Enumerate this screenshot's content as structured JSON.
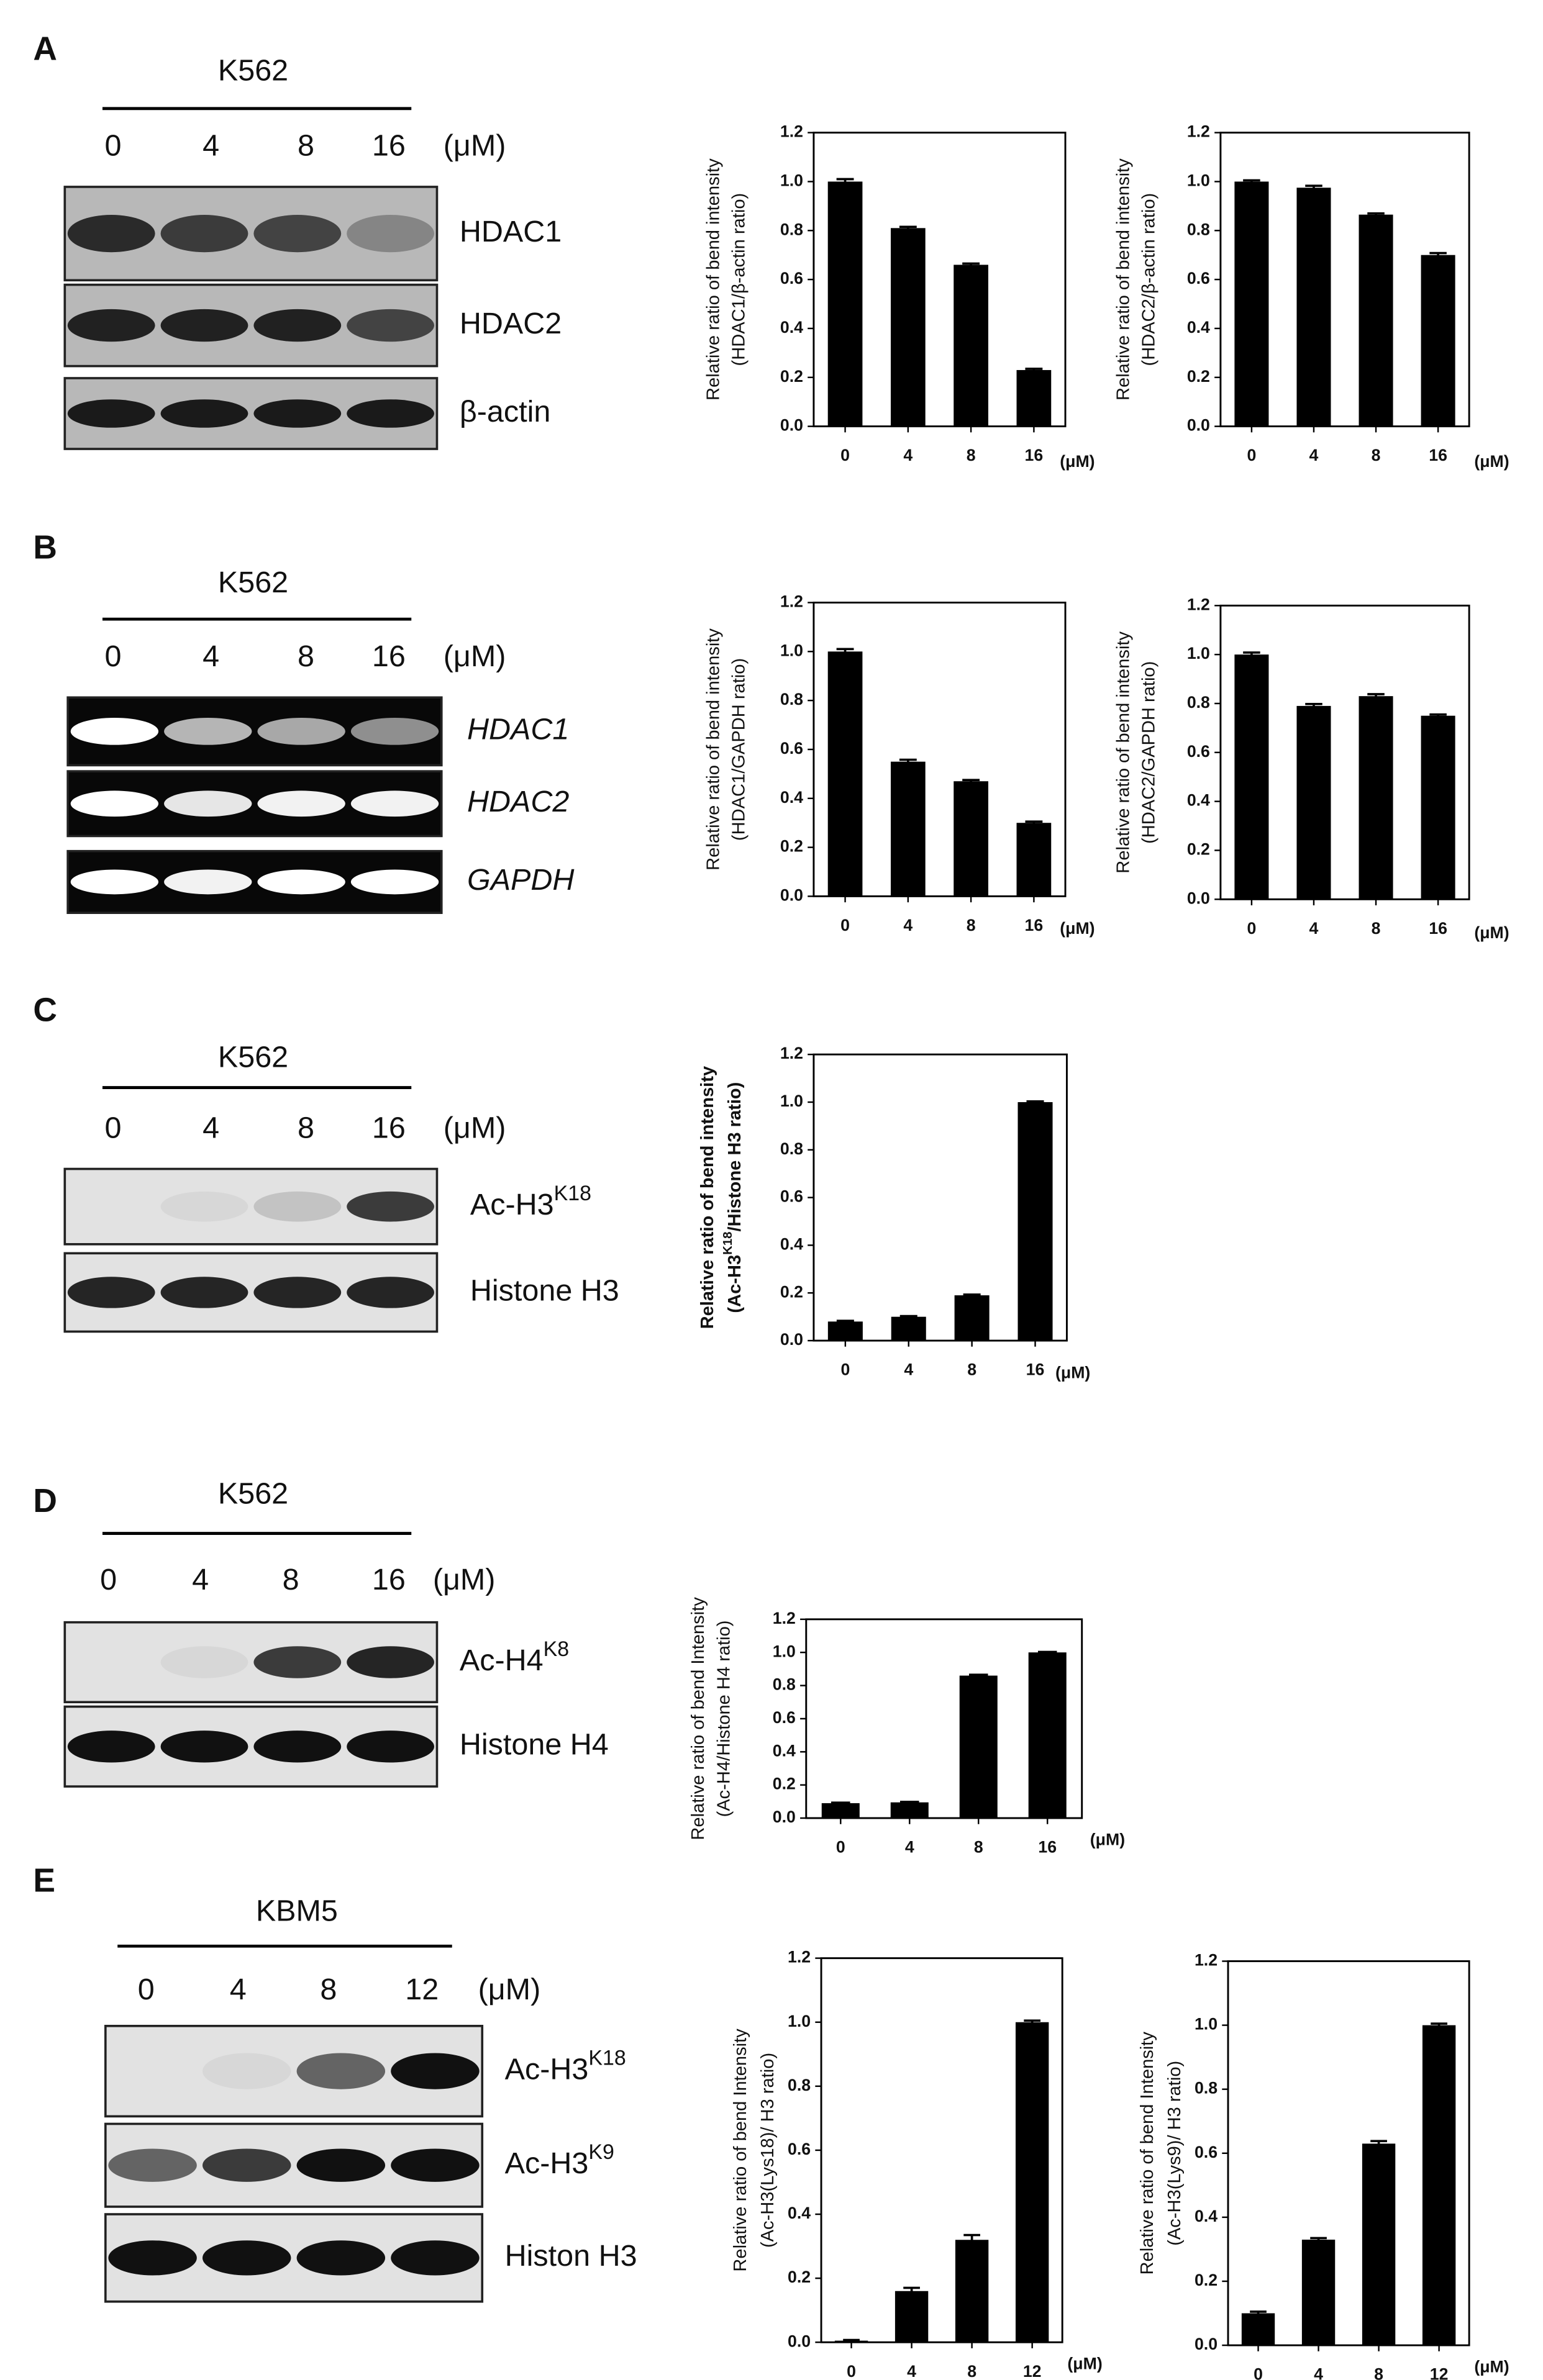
{
  "panels": [
    {
      "label": "A",
      "cell_line": "K562",
      "doses": [
        "0",
        "4",
        "8",
        "16"
      ],
      "unit": "(μM)",
      "bands": [
        "HDAC1",
        "HDAC2",
        "β-actin"
      ]
    },
    {
      "label": "B",
      "cell_line": "K562",
      "doses": [
        "0",
        "4",
        "8",
        "16"
      ],
      "unit": "(μM)",
      "bands": [
        "HDAC1",
        "HDAC2",
        "GAPDH"
      ]
    },
    {
      "label": "C",
      "cell_line": "K562",
      "doses": [
        "0",
        "4",
        "8",
        "16"
      ],
      "unit": "(μM)",
      "bands": [
        {
          "text": "Ac-H3",
          "sup": "K18"
        },
        "Histone H3"
      ]
    },
    {
      "label": "D",
      "cell_line": "K562",
      "doses": [
        "0",
        "4",
        "8",
        "16"
      ],
      "unit": "(μM)",
      "bands": [
        {
          "text": "Ac-H4",
          "sup": "K8"
        },
        "Histone H4"
      ]
    },
    {
      "label": "E",
      "cell_line": "KBM5",
      "doses": [
        "0",
        "4",
        "8",
        "12"
      ],
      "unit": "(μM)",
      "bands": [
        {
          "text": "Ac-H3",
          "sup": "K18"
        },
        {
          "text": "Ac-H3",
          "sup": "K9"
        },
        "Histon H3"
      ]
    }
  ],
  "chart_data": [
    {
      "type": "bar",
      "y_label": [
        "Relative ratio of bend intensity",
        "(HDAC1/β-actin ratio)"
      ],
      "categories": [
        "0",
        "4",
        "8",
        "16"
      ],
      "x_unit": "(μM)",
      "values": [
        1.0,
        0.81,
        0.66,
        0.23
      ],
      "errors": [
        0.01,
        0.005,
        0.005,
        0.005
      ],
      "color": "#000000",
      "ylim": [
        0,
        1.2
      ],
      "yticks": [
        {
          "value": 0,
          "label": "0.0"
        },
        0.2,
        0.4,
        0.6,
        0.8,
        {
          "value": 1,
          "label": "1.0"
        },
        1.2
      ]
    },
    {
      "type": "bar",
      "y_label": [
        "Relative ratio of bend intensity",
        "(HDAC2/β-actin ratio)"
      ],
      "categories": [
        "0",
        "4",
        "8",
        "16"
      ],
      "x_unit": "(μM)",
      "values": [
        1.0,
        0.975,
        0.865,
        0.7
      ],
      "errors": [
        0.005,
        0.008,
        0.005,
        0.008
      ],
      "color": "#000000",
      "ylim": [
        0,
        1.2
      ],
      "yticks": [
        {
          "value": 0,
          "label": "0.0"
        },
        0.2,
        0.4,
        0.6,
        0.8,
        {
          "value": 1,
          "label": "1.0"
        },
        1.2
      ]
    },
    {
      "type": "bar",
      "y_label": [
        "Relative ratio of bend intensity",
        "(HDAC1/GAPDH ratio)"
      ],
      "categories": [
        "0",
        "4",
        "8",
        "16"
      ],
      "x_unit": "(μM)",
      "values": [
        1.0,
        0.55,
        0.47,
        0.3
      ],
      "errors": [
        0.01,
        0.008,
        0.005,
        0.005
      ],
      "color": "#000000",
      "ylim": [
        0,
        1.2
      ],
      "yticks": [
        {
          "value": 0,
          "label": "0.0"
        },
        0.2,
        0.4,
        0.6,
        0.8,
        {
          "value": 1,
          "label": "1.0"
        },
        1.2
      ]
    },
    {
      "type": "bar",
      "y_label": [
        "Relative ratio of bend intensity",
        "(HDAC2/GAPDH ratio)"
      ],
      "categories": [
        "0",
        "4",
        "8",
        "16"
      ],
      "x_unit": "(μM)",
      "values": [
        1.0,
        0.79,
        0.83,
        0.75
      ],
      "errors": [
        0.008,
        0.008,
        0.008,
        0.005
      ],
      "color": "#000000",
      "ylim": [
        0,
        1.2
      ],
      "yticks": [
        {
          "value": 0,
          "label": "0.0"
        },
        0.2,
        0.4,
        0.6,
        0.8,
        {
          "value": 1,
          "label": "1.0"
        },
        1.2
      ]
    },
    {
      "type": "bar",
      "y_label": [
        "Relative ratio of bend intensity",
        {
          "text": "(Ac-H3",
          "sup": "K18",
          "tail": "/Histone H3 ratio)"
        }
      ],
      "categories": [
        "0",
        "4",
        "8",
        "16"
      ],
      "x_unit": "(μM)",
      "values": [
        0.08,
        0.1,
        0.19,
        1.0
      ],
      "errors": [
        0.003,
        0.003,
        0.003,
        0.003
      ],
      "color": "#000000",
      "ylim": [
        0,
        1.2
      ],
      "yticks": [
        {
          "value": 0,
          "label": "0.0"
        },
        0.2,
        0.4,
        0.6,
        0.8,
        {
          "value": 1,
          "label": "1.0"
        },
        1.2
      ]
    },
    {
      "type": "bar",
      "y_label": [
        "Relative ratio of bend Intensity",
        "(Ac-H4/Histone H4 ratio)"
      ],
      "categories": [
        "0",
        "4",
        "8",
        "16"
      ],
      "x_unit": "(μM)",
      "values": [
        0.09,
        0.095,
        0.86,
        1.0
      ],
      "errors": [
        0.003,
        0.003,
        0.005,
        0.003
      ],
      "color": "#000000",
      "ylim": [
        0,
        1.2
      ],
      "yticks": [
        {
          "value": 0,
          "label": "0.0"
        },
        0.2,
        0.4,
        0.6,
        0.8,
        {
          "value": 1,
          "label": "1.0"
        },
        1.2
      ]
    },
    {
      "type": "bar",
      "y_label": [
        "Relative ratio of bend Intensity",
        "(Ac-H3(Lys18)/ H3 ratio)"
      ],
      "categories": [
        "0",
        "4",
        "8",
        "12"
      ],
      "x_unit": "(μM)",
      "values": [
        0.005,
        0.16,
        0.32,
        1.0
      ],
      "errors": [
        0.002,
        0.01,
        0.015,
        0.005
      ],
      "color": "#000000",
      "ylim": [
        0,
        1.2
      ],
      "yticks": [
        {
          "value": 0,
          "label": "0.0"
        },
        0.2,
        0.4,
        0.6,
        0.8,
        {
          "value": 1,
          "label": "1.0"
        },
        1.2
      ]
    },
    {
      "type": "bar",
      "y_label": [
        "Relative ratio of bend Intensity",
        "(Ac-H3(Lys9)/ H3 ratio)"
      ],
      "categories": [
        "0",
        "4",
        "8",
        "12"
      ],
      "x_unit": "(μM)",
      "values": [
        0.1,
        0.33,
        0.63,
        1.0
      ],
      "errors": [
        0.005,
        0.005,
        0.008,
        0.005
      ],
      "color": "#000000",
      "ylim": [
        0,
        1.2
      ],
      "yticks": [
        {
          "value": 0,
          "label": "0.0"
        },
        0.2,
        0.4,
        0.6,
        0.8,
        {
          "value": 1,
          "label": "1.0"
        },
        1.2
      ]
    }
  ]
}
